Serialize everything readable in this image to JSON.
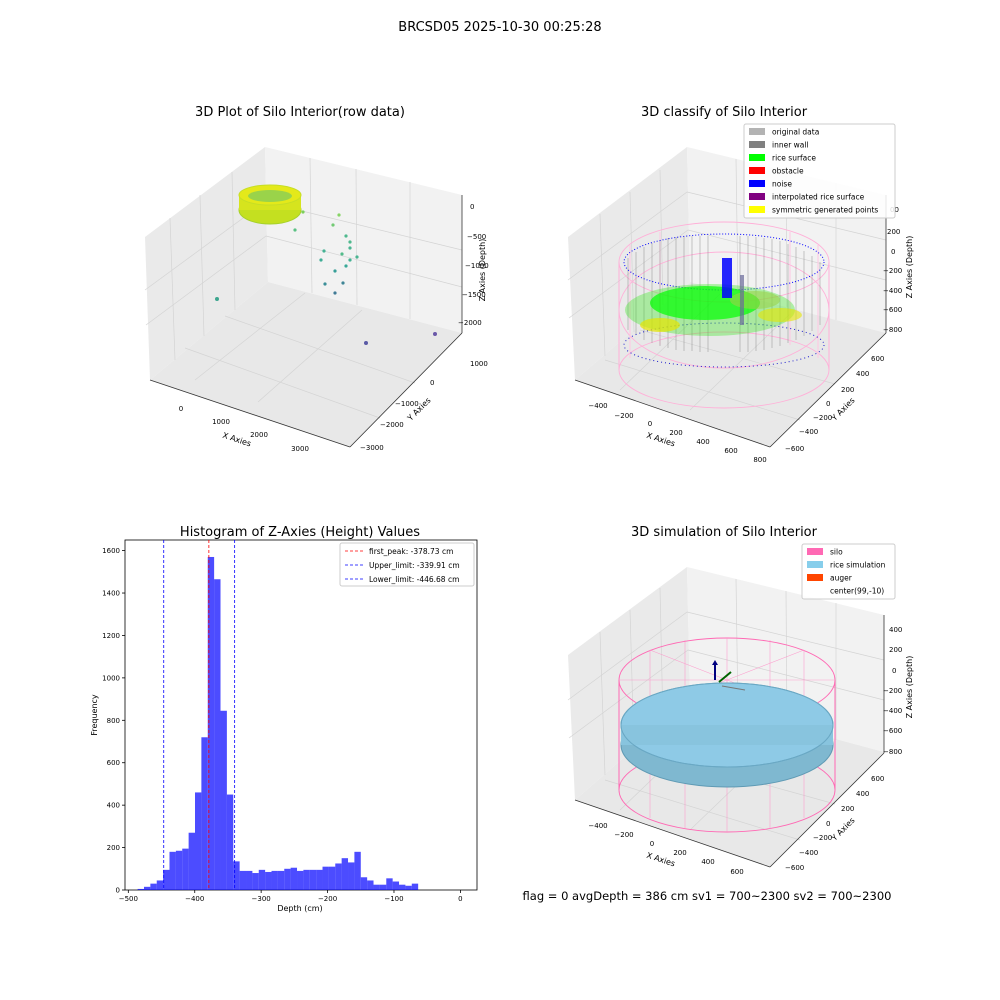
{
  "figure": {
    "suptitle": "BRCSD05 2025-10-30 00:25:28",
    "status_text": "flag = 0     avgDepth = 386 cm  sv1 = 700~2300  sv2 = 700~2300"
  },
  "panel_raw": {
    "title": "3D Plot of Silo Interior(row data)",
    "xlabel": "X Axies",
    "ylabel": "Y Axies",
    "zlabel": "Z Axies (Depth)",
    "xticks": [
      "0",
      "1000",
      "2000",
      "3000"
    ],
    "yticks": [
      "1000",
      "0",
      "−1000",
      "−2000",
      "−3000"
    ],
    "zticks": [
      "0",
      "−500",
      "−1000",
      "−1500",
      "−2000"
    ]
  },
  "panel_classify": {
    "title": "3D classify of Silo Interior",
    "xlabel": "X Axies",
    "ylabel": "Y Axies",
    "zlabel": "Z Axies (Depth)",
    "xticks": [
      "−400",
      "−200",
      "0",
      "200",
      "400",
      "600",
      "800"
    ],
    "yticks": [
      "600",
      "400",
      "200",
      "0",
      "−200",
      "−400",
      "−600"
    ],
    "zticks": [
      "200",
      "0",
      "−200",
      "−400",
      "−600",
      "−800"
    ],
    "z_partial_tick": "00",
    "legend": [
      {
        "label": "original data",
        "color": "#b3b3b3"
      },
      {
        "label": "inner wall",
        "color": "#808080"
      },
      {
        "label": "rice surface",
        "color": "#00ff00"
      },
      {
        "label": "obstacle",
        "color": "#ff0000"
      },
      {
        "label": "noise",
        "color": "#0000ff"
      },
      {
        "label": "interpolated rice surface",
        "color": "#800080"
      },
      {
        "label": "symmetric generated points",
        "color": "#ffff00"
      }
    ]
  },
  "panel_sim": {
    "title": "3D simulation of Silo Interior",
    "xlabel": "X Axies",
    "ylabel": "Y Axies",
    "zlabel": "Z Axies (Depth)",
    "xticks": [
      "−400",
      "−200",
      "0",
      "200",
      "400",
      "600"
    ],
    "yticks": [
      "600",
      "400",
      "200",
      "0",
      "−200",
      "−400",
      "−600"
    ],
    "zticks": [
      "400",
      "200",
      "0",
      "−200",
      "−400",
      "−600",
      "−800"
    ],
    "legend": [
      {
        "label": "silo",
        "color": "#ff69b4"
      },
      {
        "label": "rice simulation",
        "color": "#87ceeb"
      },
      {
        "label": "auger",
        "color": "#ff4500"
      },
      {
        "label": "center(99,-10)",
        "color": ""
      }
    ]
  },
  "chart_data": {
    "type": "bar",
    "title": "Histogram of Z-Axies (Height) Values",
    "xlabel": "Depth (cm)",
    "ylabel": "Frequency",
    "xlim": [
      -505,
      25
    ],
    "ylim": [
      0,
      1650
    ],
    "xticks": [
      -500,
      -400,
      -300,
      -200,
      -100,
      0
    ],
    "xtick_labels": [
      "−500",
      "−400",
      "−300",
      "−200",
      "−100",
      "0"
    ],
    "yticks": [
      0,
      200,
      400,
      600,
      800,
      1000,
      1200,
      1400,
      1600
    ],
    "bar_color": "#0000ff",
    "bin_width": 9.6,
    "bin_start": -486,
    "values": [
      5,
      15,
      30,
      45,
      95,
      180,
      185,
      195,
      270,
      460,
      720,
      1570,
      1465,
      845,
      450,
      135,
      90,
      90,
      80,
      95,
      85,
      90,
      90,
      100,
      105,
      90,
      95,
      95,
      95,
      110,
      110,
      125,
      150,
      130,
      180,
      60,
      45,
      25,
      25,
      55,
      40,
      25,
      20,
      30
    ],
    "vlines": [
      {
        "label": "first_peak: -378.73 cm",
        "value": -378.73,
        "color": "#ff0000"
      },
      {
        "label": "Upper_limit: -339.91 cm",
        "value": -339.91,
        "color": "#0000ff"
      },
      {
        "label": "Lower_limit: -446.68 cm",
        "value": -446.68,
        "color": "#0000ff"
      }
    ]
  }
}
